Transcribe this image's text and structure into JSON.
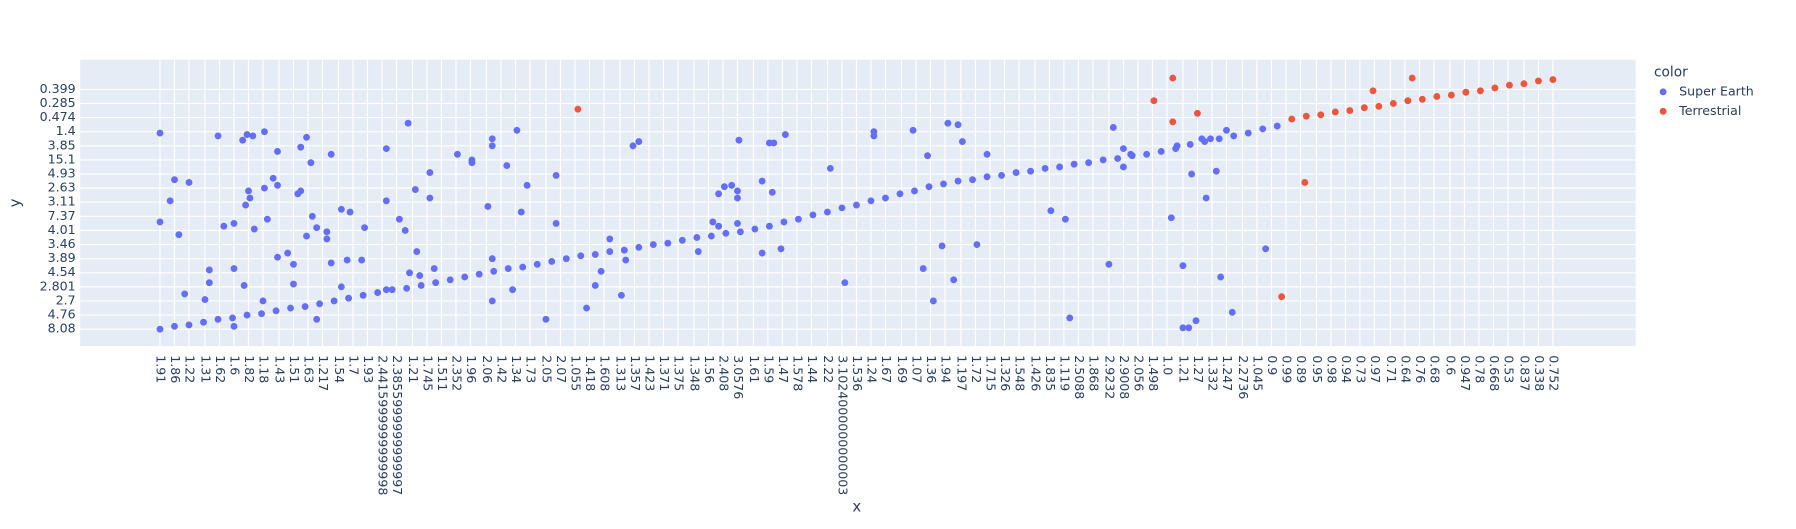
{
  "chart_data": {
    "type": "scatter",
    "x_label": "x",
    "y_label": "y",
    "legend_title": "color",
    "legend_position": "right",
    "grid": true,
    "xlim": [
      -5.5,
      101.7
    ],
    "ylim": [
      -1.2,
      19.1
    ],
    "xticks": [
      {
        "value": 0,
        "label": "1.91"
      },
      {
        "value": 1.0,
        "label": "1.86"
      },
      {
        "value": 2.0,
        "label": "1.22"
      },
      {
        "value": 3.1,
        "label": "1.31"
      },
      {
        "value": 4.1,
        "label": "1.62"
      },
      {
        "value": 5.1,
        "label": "1.6"
      },
      {
        "value": 6.1,
        "label": "1.82"
      },
      {
        "value": 7.1,
        "label": "1.18"
      },
      {
        "value": 8.2,
        "label": "1.43"
      },
      {
        "value": 9.2,
        "label": "1.51"
      },
      {
        "value": 10.2,
        "label": "1.63"
      },
      {
        "value": 11.2,
        "label": "1.217"
      },
      {
        "value": 12.3,
        "label": "1.54"
      },
      {
        "value": 13.3,
        "label": "1.7"
      },
      {
        "value": 14.3,
        "label": "1.93"
      },
      {
        "value": 15.3,
        "label": "2.4415999999999998"
      },
      {
        "value": 16.3,
        "label": "2.3855999999999997"
      },
      {
        "value": 17.4,
        "label": "1.21"
      },
      {
        "value": 18.4,
        "label": "1.745"
      },
      {
        "value": 19.4,
        "label": "1.511"
      },
      {
        "value": 20.4,
        "label": "2.352"
      },
      {
        "value": 21.4,
        "label": "1.96"
      },
      {
        "value": 22.5,
        "label": "2.06"
      },
      {
        "value": 23.5,
        "label": "1.42"
      },
      {
        "value": 24.5,
        "label": "1.34"
      },
      {
        "value": 25.5,
        "label": "1.73"
      },
      {
        "value": 26.6,
        "label": "2.05"
      },
      {
        "value": 27.6,
        "label": "2.07"
      },
      {
        "value": 28.6,
        "label": "1.055"
      },
      {
        "value": 29.6,
        "label": "1.418"
      },
      {
        "value": 30.6,
        "label": "1.608"
      },
      {
        "value": 31.7,
        "label": "1.313"
      },
      {
        "value": 32.7,
        "label": "1.357"
      },
      {
        "value": 33.7,
        "label": "1.423"
      },
      {
        "value": 34.7,
        "label": "1.371"
      },
      {
        "value": 35.7,
        "label": "1.375"
      },
      {
        "value": 36.8,
        "label": "1.348"
      },
      {
        "value": 37.8,
        "label": "1.56"
      },
      {
        "value": 38.8,
        "label": "2.408"
      },
      {
        "value": 39.8,
        "label": "3.0576"
      },
      {
        "value": 40.9,
        "label": "1.61"
      },
      {
        "value": 41.9,
        "label": "1.59"
      },
      {
        "value": 42.9,
        "label": "1.47"
      },
      {
        "value": 43.9,
        "label": "1.578"
      },
      {
        "value": 44.9,
        "label": "1.44"
      },
      {
        "value": 46.0,
        "label": "2.22"
      },
      {
        "value": 47.0,
        "label": "3.1024000000000003"
      },
      {
        "value": 48.0,
        "label": "1.536"
      },
      {
        "value": 49.0,
        "label": "1.24"
      },
      {
        "value": 50.0,
        "label": "1.67"
      },
      {
        "value": 51.1,
        "label": "1.69"
      },
      {
        "value": 52.1,
        "label": "1.07"
      },
      {
        "value": 53.1,
        "label": "1.36"
      },
      {
        "value": 54.1,
        "label": "1.94"
      },
      {
        "value": 55.2,
        "label": "1.197"
      },
      {
        "value": 56.2,
        "label": "1.72"
      },
      {
        "value": 57.2,
        "label": "1.715"
      },
      {
        "value": 58.2,
        "label": "1.326"
      },
      {
        "value": 59.2,
        "label": "1.548"
      },
      {
        "value": 60.3,
        "label": "1.426"
      },
      {
        "value": 61.3,
        "label": "1.835"
      },
      {
        "value": 62.3,
        "label": "1.119"
      },
      {
        "value": 63.3,
        "label": "2.5088"
      },
      {
        "value": 64.3,
        "label": "1.868"
      },
      {
        "value": 65.4,
        "label": "2.9232"
      },
      {
        "value": 66.4,
        "label": "2.9008"
      },
      {
        "value": 67.4,
        "label": "2.056"
      },
      {
        "value": 68.4,
        "label": "1.498"
      },
      {
        "value": 69.4,
        "label": "1.0"
      },
      {
        "value": 70.5,
        "label": "1.21"
      },
      {
        "value": 71.5,
        "label": "1.27"
      },
      {
        "value": 72.5,
        "label": "1.332"
      },
      {
        "value": 73.5,
        "label": "1.247"
      },
      {
        "value": 74.6,
        "label": "2.2736"
      },
      {
        "value": 75.6,
        "label": "1.045"
      },
      {
        "value": 76.6,
        "label": "0.9"
      },
      {
        "value": 77.6,
        "label": "0.99"
      },
      {
        "value": 78.6,
        "label": "0.89"
      },
      {
        "value": 79.7,
        "label": "0.95"
      },
      {
        "value": 80.7,
        "label": "0.98"
      },
      {
        "value": 81.7,
        "label": "0.94"
      },
      {
        "value": 82.7,
        "label": "0.73"
      },
      {
        "value": 83.7,
        "label": "0.97"
      },
      {
        "value": 84.8,
        "label": "0.71"
      },
      {
        "value": 85.8,
        "label": "0.64"
      },
      {
        "value": 86.8,
        "label": "0.76"
      },
      {
        "value": 87.8,
        "label": "0.68"
      },
      {
        "value": 88.9,
        "label": "0.6"
      },
      {
        "value": 89.9,
        "label": "0.947"
      },
      {
        "value": 90.9,
        "label": "0.78"
      },
      {
        "value": 91.9,
        "label": "0.668"
      },
      {
        "value": 92.9,
        "label": "0.53"
      },
      {
        "value": 94.0,
        "label": "0.837"
      },
      {
        "value": 95.0,
        "label": "0.338"
      },
      {
        "value": 96.0,
        "label": "0.752"
      }
    ],
    "yticks": [
      {
        "value": 0,
        "label": "8.08"
      },
      {
        "value": 1,
        "label": "4.76"
      },
      {
        "value": 2,
        "label": "2.7"
      },
      {
        "value": 3,
        "label": "2.801"
      },
      {
        "value": 4,
        "label": "4.54"
      },
      {
        "value": 5,
        "label": "3.89"
      },
      {
        "value": 6,
        "label": "3.46"
      },
      {
        "value": 7,
        "label": "4.01"
      },
      {
        "value": 8,
        "label": "7.37"
      },
      {
        "value": 9,
        "label": "3.11"
      },
      {
        "value": 10,
        "label": "2.63"
      },
      {
        "value": 11,
        "label": "4.93"
      },
      {
        "value": 12,
        "label": "15.1"
      },
      {
        "value": 13,
        "label": "3.85"
      },
      {
        "value": 14,
        "label": "1.4"
      },
      {
        "value": 15,
        "label": "0.474"
      },
      {
        "value": 16,
        "label": "0.285"
      },
      {
        "value": 17,
        "label": "0.399"
      }
    ],
    "series": [
      {
        "name": "Super Earth",
        "color": "#636efa",
        "x": [
          0,
          1,
          2,
          3,
          4,
          5,
          6,
          7,
          8,
          9,
          10,
          11,
          12,
          13,
          14,
          15,
          16,
          17,
          18,
          19,
          20,
          21,
          22,
          23,
          24,
          25,
          26,
          27,
          28,
          29,
          30,
          31,
          32,
          33,
          34,
          35,
          36,
          37,
          38,
          39,
          40,
          41,
          42,
          43,
          44,
          45,
          46,
          47,
          48,
          49,
          50,
          51,
          52,
          53,
          54,
          55,
          56,
          57,
          58,
          59,
          60,
          61,
          62,
          63,
          64,
          65,
          66,
          67,
          68,
          69,
          70,
          71,
          72,
          73,
          74,
          75,
          76,
          77,
          0,
          0,
          0.7,
          1.0,
          1.3,
          1.7,
          2.0,
          3.1,
          3.4,
          3.4,
          4.0,
          4.4,
          5.1,
          5.1,
          5.1,
          5.7,
          5.8,
          6.0,
          6.4,
          5.9,
          6.1,
          6.2,
          6.5,
          7.1,
          7.2,
          7.2,
          7.4,
          7.8,
          8.1,
          8.1,
          8.1,
          8.8,
          9.2,
          9.2,
          9.5,
          9.7,
          9.7,
          10.1,
          10.4,
          10.1,
          10.5,
          10.8,
          10.8,
          11.5,
          11.5,
          11.8,
          11.8,
          12.5,
          12.5,
          12.9,
          13.1,
          13.9,
          14.1,
          15.6,
          15.6,
          15.6,
          16.5,
          16.9,
          17.1,
          17.2,
          17.6,
          17.7,
          17.9,
          18.6,
          18.6,
          18.9,
          20.5,
          21.5,
          21.5,
          22.6,
          22.9,
          22.9,
          22.9,
          22.9,
          23.9,
          24.3,
          24.6,
          24.9,
          25.3,
          26.6,
          27.3,
          27.3,
          29.4,
          30.0,
          30.4,
          31.0,
          31.8,
          32.1,
          32.6,
          33.0,
          37.1,
          38.1,
          38.5,
          38.5,
          38.9,
          39.4,
          39.8,
          39.8,
          39.9,
          39.8,
          41.5,
          41.5,
          42.0,
          42.3,
          42.2,
          42.8,
          43.1,
          46.2,
          47.2,
          49.2,
          49.2,
          51.9,
          52.6,
          52.9,
          53.3,
          53.9,
          54.3,
          54.7,
          55.0,
          55.3,
          56.3,
          57.0,
          61.4,
          62.4,
          62.7,
          65.4,
          65.7,
          66.4,
          66.4,
          66.9,
          69.7,
          70.1,
          70.5,
          70.5,
          70.9,
          71.1,
          71.4,
          71.8,
          72.1,
          72.4,
          72.8,
          73.1,
          73.5,
          73.9,
          76.2
        ],
        "y": [
          0,
          0.2,
          0.3,
          0.5,
          0.7,
          0.8,
          1.0,
          1.1,
          1.3,
          1.5,
          1.6,
          1.8,
          2.0,
          2.2,
          2.4,
          2.6,
          2.8,
          2.9,
          3.1,
          3.3,
          3.5,
          3.7,
          3.9,
          4.1,
          4.3,
          4.4,
          4.6,
          4.8,
          5.0,
          5.2,
          5.3,
          5.5,
          5.6,
          5.8,
          6.0,
          6.1,
          6.3,
          6.5,
          6.6,
          6.8,
          6.9,
          7.1,
          7.3,
          7.6,
          7.8,
          8.1,
          8.3,
          8.6,
          8.8,
          9.1,
          9.3,
          9.6,
          9.8,
          10.1,
          10.3,
          10.5,
          10.6,
          10.8,
          10.9,
          11.1,
          11.2,
          11.4,
          11.5,
          11.7,
          11.8,
          12.0,
          12.1,
          12.3,
          12.4,
          12.6,
          12.8,
          13.1,
          13.3,
          13.5,
          13.7,
          13.9,
          14.2,
          14.4,
          13.9,
          7.6,
          9.1,
          10.6,
          6.7,
          2.5,
          10.4,
          2.1,
          4.2,
          3.3,
          13.7,
          7.3,
          7.5,
          4.3,
          0.2,
          13.4,
          3.1,
          13.8,
          13.7,
          8.8,
          9.8,
          9.3,
          7.1,
          2.0,
          10.0,
          14.0,
          7.8,
          10.7,
          10.2,
          5.1,
          12.6,
          5.4,
          3.2,
          4.6,
          9.6,
          9.8,
          12.9,
          13.6,
          11.8,
          6.6,
          8.0,
          7.2,
          0.7,
          6.9,
          6.4,
          12.4,
          4.7,
          8.5,
          3.0,
          4.9,
          8.3,
          4.9,
          7.2,
          12.8,
          9.1,
          2.8,
          7.8,
          7.0,
          14.6,
          4.0,
          9.9,
          5.5,
          3.8,
          11.1,
          9.3,
          4.3,
          12.4,
          12.0,
          11.8,
          8.7,
          13.5,
          13.0,
          5.0,
          2.0,
          11.6,
          2.8,
          14.1,
          8.3,
          10.2,
          0.7,
          10.9,
          7.5,
          1.5,
          3.1,
          4.1,
          6.4,
          2.4,
          4.9,
          13.0,
          13.3,
          5.5,
          7.6,
          7.3,
          9.6,
          10.1,
          10.2,
          9.8,
          9.3,
          13.4,
          7.5,
          5.4,
          10.5,
          13.2,
          13.2,
          9.7,
          5.7,
          13.8,
          11.4,
          3.3,
          14.0,
          13.7,
          14.1,
          4.3,
          12.3,
          2.0,
          5.9,
          14.6,
          3.5,
          14.5,
          13.3,
          6.0,
          12.4,
          8.4,
          7.8,
          0.8,
          4.6,
          14.3,
          12.8,
          11.5,
          12.4,
          7.9,
          13.0,
          4.5,
          0.1,
          0.1,
          11.0,
          0.6,
          13.5,
          9.3,
          13.5,
          11.2,
          3.7,
          14.1,
          1.2,
          5.7
        ]
      },
      {
        "name": "Terrestrial",
        "color": "#EF553B",
        "x": [
          78,
          79,
          80,
          81,
          82,
          83,
          84,
          85,
          86,
          87,
          88,
          89,
          90,
          91,
          92,
          93,
          94,
          95,
          96,
          28.8,
          68.5,
          69.8,
          69.8,
          71.5,
          77.3,
          78.9,
          83.6,
          86.3
        ],
        "y": [
          14.9,
          15.1,
          15.2,
          15.4,
          15.5,
          15.7,
          15.8,
          16.0,
          16.2,
          16.3,
          16.5,
          16.6,
          16.8,
          16.9,
          17.1,
          17.3,
          17.4,
          17.6,
          17.7,
          15.6,
          16.2,
          17.8,
          14.7,
          15.3,
          2.3,
          10.4,
          16.9,
          17.8
        ]
      }
    ]
  }
}
